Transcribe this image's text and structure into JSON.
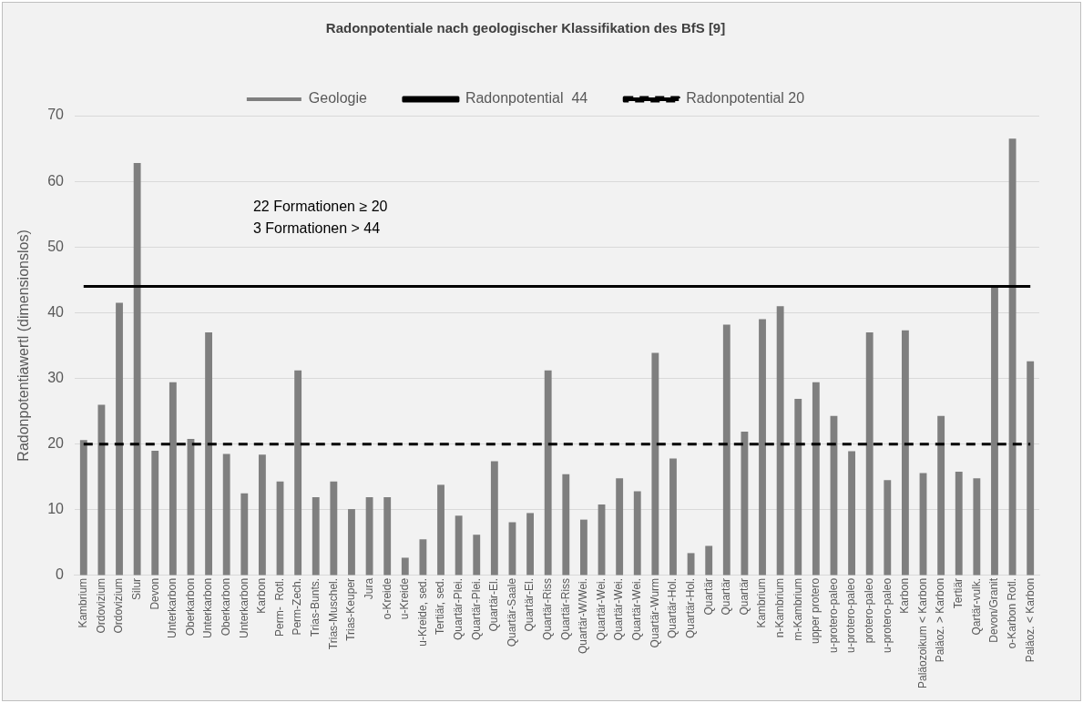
{
  "chart_data": {
    "type": "bar",
    "title": "Radonpotentiale nach geologischer Klassifikation des BfS [9]",
    "ylabel": "Radonpotentiawertl (dimensionslos)",
    "categories": [
      "Kambrium",
      "Ordovizium",
      "Ordovizium",
      "Silur",
      "Devon",
      "Unterkarbon",
      "Oberkarbon",
      "Unterkarbon",
      "Oberkarbon",
      "Unterkarbon",
      "Karbon",
      "Perm-  Rotl.",
      "Perm-Zech.",
      "Trias-Bunts.",
      "Trias-Muschel.",
      "Trias-Keuper",
      "Jura",
      "o-Kreide",
      "u-Kreide",
      "u-Kreide, sed.",
      "Tertiär, sed.",
      "Quartär-Plei.",
      "Quartär-Plei.",
      "Quartär-El.",
      "Quartär-Saale",
      "Quartär-El.",
      "Quartär-Riss",
      "Quartär-Riss",
      "Quartär-W/Wei.",
      "Quartär-Wei.",
      "Quartär-Wei.",
      "Quartär-Wei.",
      "Quartär-Wurm",
      "Quartär-Hol.",
      "Quartär-Hol.",
      "Quartär",
      "Quartär",
      "Quartär",
      "Kambrium",
      "n-Kambrium",
      "m-Kambrium",
      "upper protero",
      "u-protero-paleo",
      "u-protero-paleo",
      "protero-paleo",
      "u-protero-paleo",
      "Karbon",
      "Paläozoikum < Karbon",
      "Paläoz. > Karbon",
      "Tertiär",
      "Qartär-vulk.",
      "Devon/Granit",
      "o-Karbon Rotl.",
      "Paläoz. < Karbon"
    ],
    "series": [
      {
        "name": "Geologie",
        "color": "#7f7f7f",
        "values": [
          20.6,
          26,
          41.5,
          62.8,
          19,
          29.4,
          20.8,
          37,
          18.5,
          12.5,
          18.4,
          14.3,
          31.2,
          11.9,
          14.3,
          10.1,
          11.9,
          11.9,
          2.7,
          5.5,
          13.8,
          9.1,
          6.2,
          17.4,
          8.1,
          9.5,
          31.2,
          15.4,
          8.5,
          10.8,
          14.8,
          12.8,
          33.9,
          17.8,
          3.4,
          4.5,
          38.2,
          21.9,
          39,
          41,
          26.9,
          29.4,
          24.3,
          18.9,
          37,
          14.5,
          37.3,
          15.6,
          24.3,
          15.8,
          14.8,
          43.9,
          66.5,
          32.6
        ]
      },
      {
        "name": "Radonpotential  44",
        "type": "line",
        "color": "#000000",
        "line_style": "solid",
        "values": [
          44,
          44,
          44,
          44,
          44,
          44,
          44,
          44,
          44,
          44,
          44,
          44,
          44,
          44,
          44,
          44,
          44,
          44,
          44,
          44,
          44,
          44,
          44,
          44,
          44,
          44,
          44,
          44,
          44,
          44,
          44,
          44,
          44,
          44,
          44,
          44,
          44,
          44,
          44,
          44,
          44,
          44,
          44,
          44,
          44,
          44,
          44,
          44,
          44,
          44,
          44,
          44,
          44,
          44
        ]
      },
      {
        "name": "Radonpotential 20",
        "type": "line",
        "color": "#000000",
        "line_style": "dashed",
        "values": [
          20,
          20,
          20,
          20,
          20,
          20,
          20,
          20,
          20,
          20,
          20,
          20,
          20,
          20,
          20,
          20,
          20,
          20,
          20,
          20,
          20,
          20,
          20,
          20,
          20,
          20,
          20,
          20,
          20,
          20,
          20,
          20,
          20,
          20,
          20,
          20,
          20,
          20,
          20,
          20,
          20,
          20,
          20,
          20,
          20,
          20,
          20,
          20,
          20,
          20,
          20,
          20,
          20,
          20
        ]
      }
    ],
    "ylim": [
      0,
      70
    ],
    "yticks": [
      0,
      10,
      20,
      30,
      40,
      50,
      60,
      70
    ],
    "grid": "y",
    "legend": "top",
    "marker": "none",
    "annotations": [
      "22 Formationen ≥ 20",
      "3 Formationen > 44"
    ]
  }
}
